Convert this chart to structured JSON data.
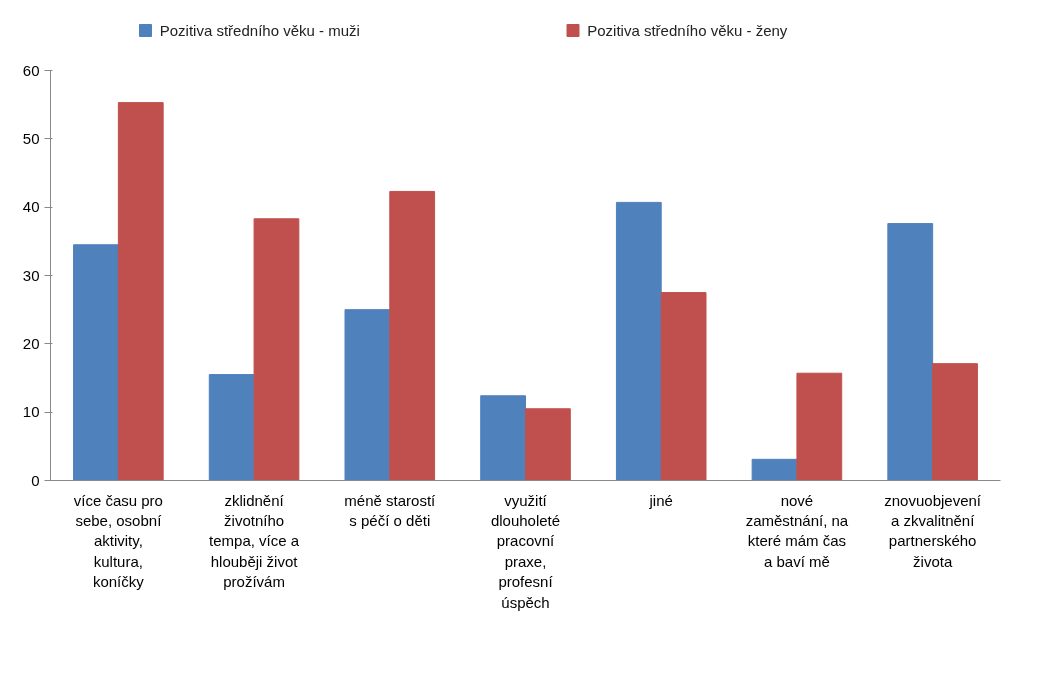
{
  "chart_data": {
    "type": "bar",
    "categories": [
      "více času pro sebe, osobní aktivity, kultura, koníčky",
      "zklidnění životního tempa, více a hlouběji život prožívám",
      "méně starostí s péčí o děti",
      "využití dlouholeté pracovní praxe, profesní úspěch",
      "jiné",
      "nové zaměstnání, na které mám čas a baví mě",
      "znovuobjevení a zkvalitnění partnerského života"
    ],
    "series": [
      {
        "name": "Pozitiva středního věku - muži",
        "color": "#4f81bd",
        "values": [
          34.5,
          15.5,
          25.0,
          12.4,
          40.7,
          3.1,
          37.6
        ]
      },
      {
        "name": "Pozitiva středního věku - ženy",
        "color": "#c0504d",
        "values": [
          55.3,
          38.3,
          42.3,
          10.5,
          27.5,
          15.7,
          17.1
        ]
      }
    ],
    "ylim": [
      0,
      60
    ],
    "yticks": [
      0,
      10,
      20,
      30,
      40,
      50,
      60
    ],
    "grid": false,
    "legend": "top"
  }
}
